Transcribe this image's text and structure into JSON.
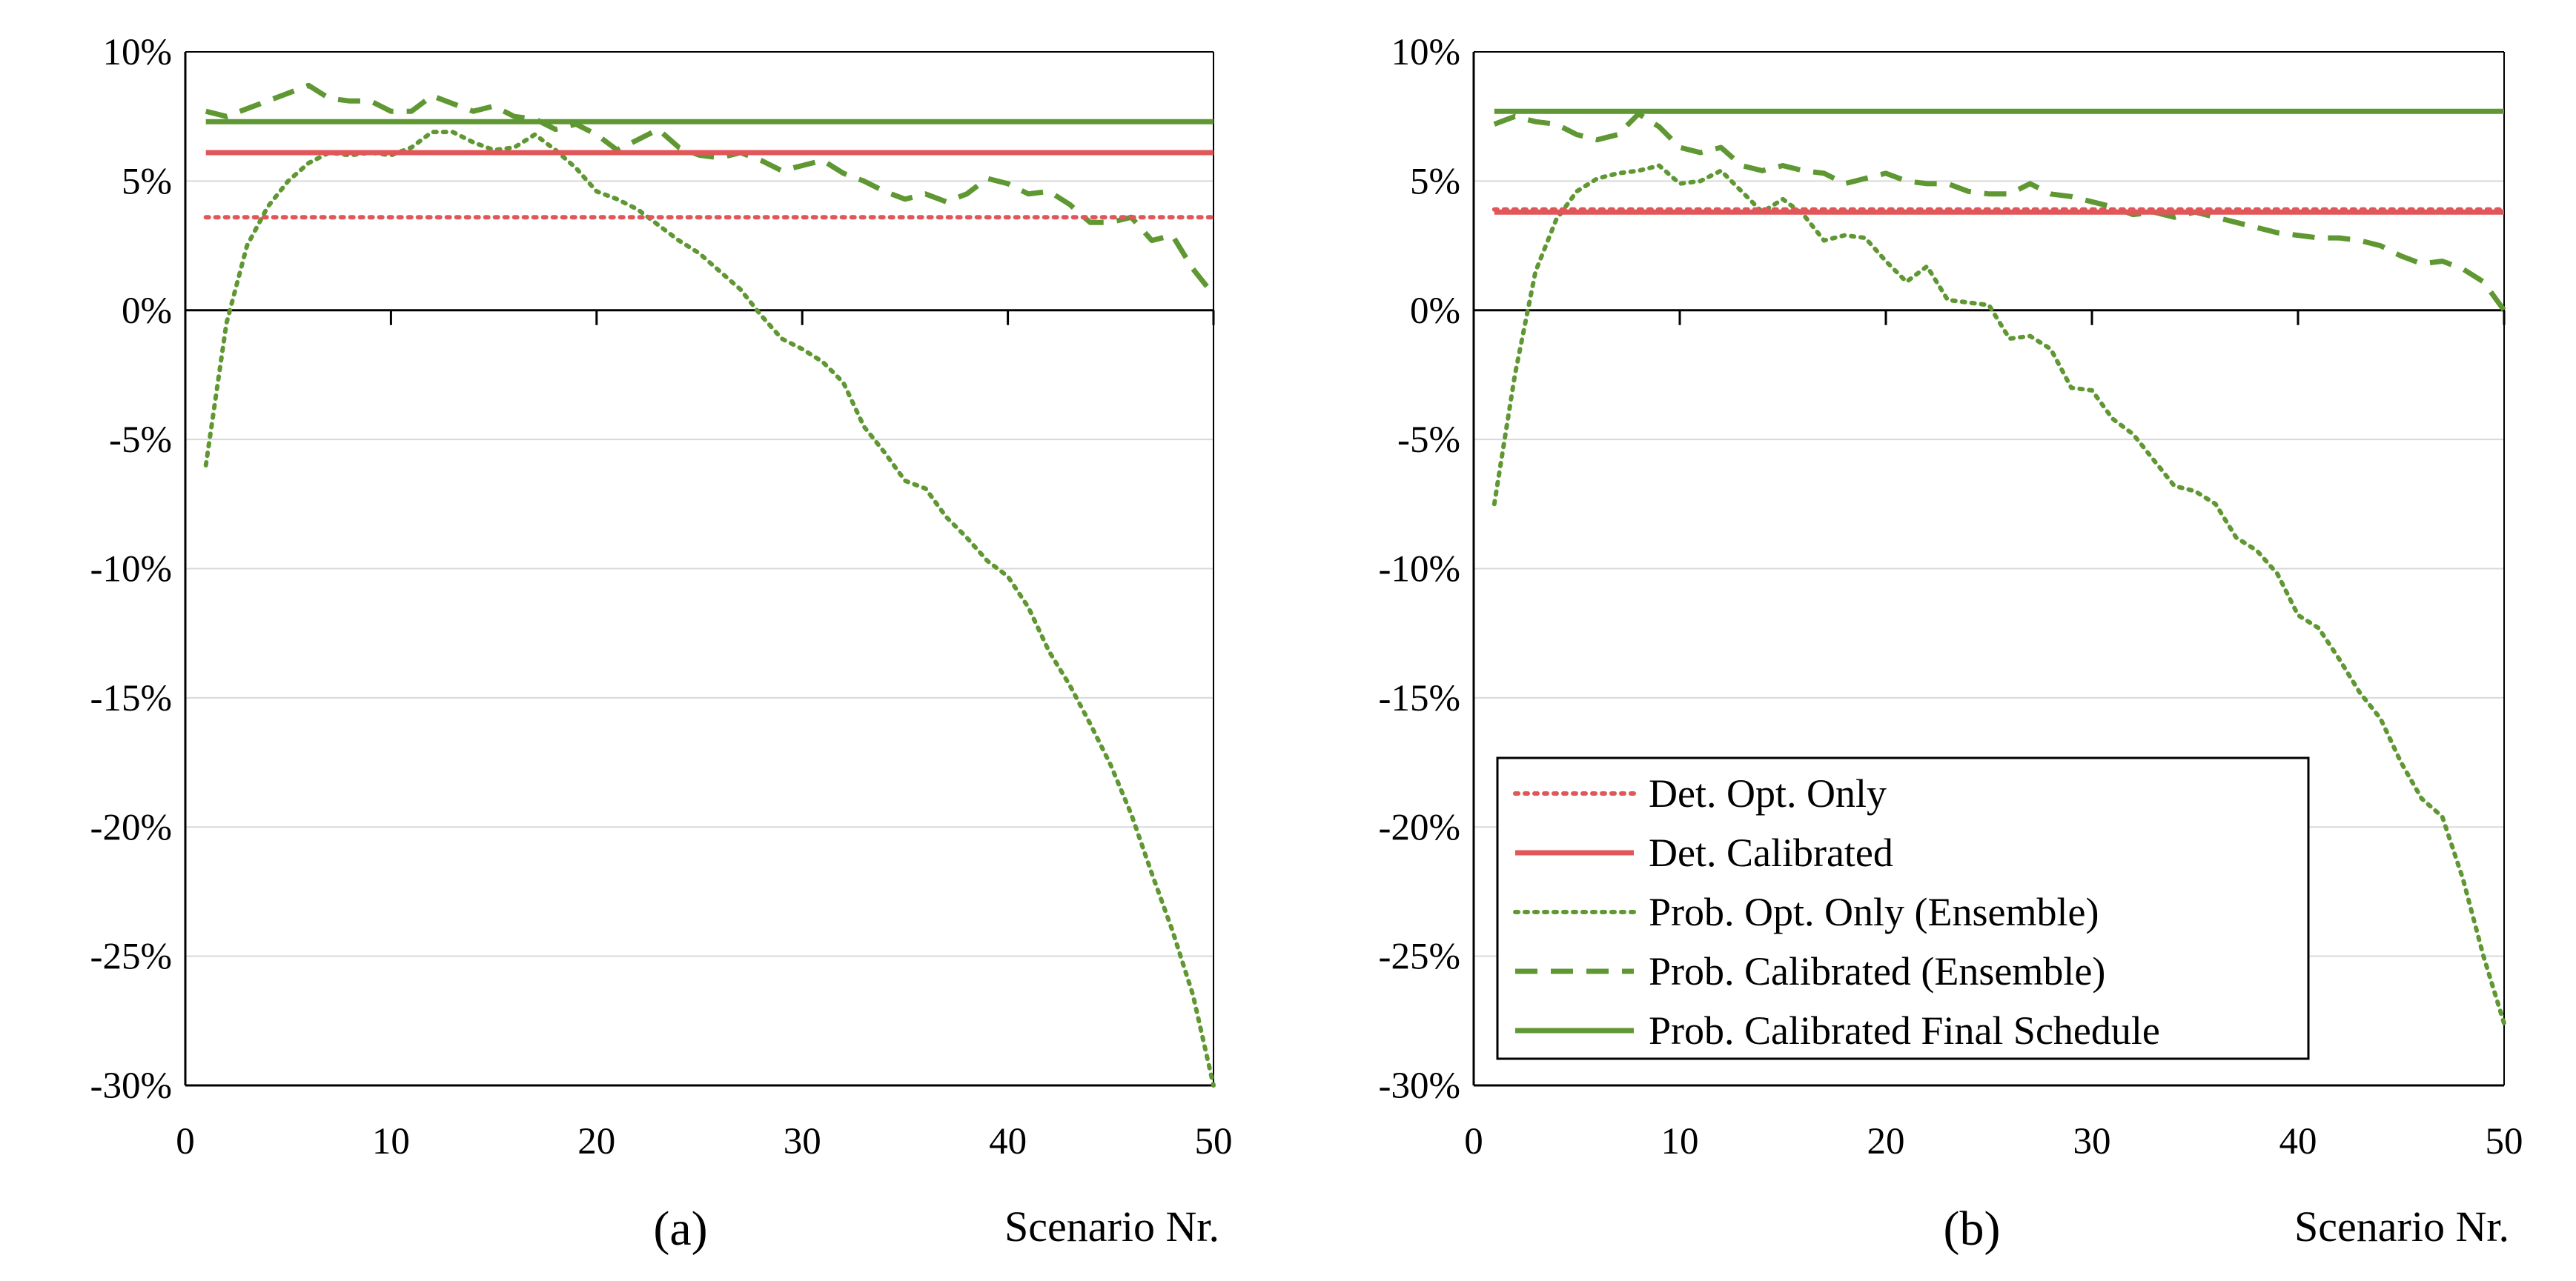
{
  "colors": {
    "red": "#e15759",
    "green": "#5f9732",
    "grid": "#d9d9d9",
    "axis": "#000000"
  },
  "chart_data": [
    {
      "type": "line",
      "panel_label": "(a)",
      "xlabel": "Scenario Nr.",
      "ylabel": "",
      "xlim": [
        0,
        50
      ],
      "ylim": [
        -30,
        10
      ],
      "xticks": [
        "0",
        "10",
        "20",
        "30",
        "40",
        "50"
      ],
      "yticks": [
        "10%",
        "5%",
        "0%",
        "-5%",
        "-10%",
        "-15%",
        "-20%",
        "-25%",
        "-30%"
      ],
      "series": [
        {
          "name": "Det. Opt. Only",
          "style": "red-dotted",
          "x": [
            1,
            50
          ],
          "values": [
            3.6,
            3.6
          ]
        },
        {
          "name": "Det. Calibrated",
          "style": "red-solid",
          "x": [
            1,
            50
          ],
          "values": [
            6.1,
            6.1
          ]
        },
        {
          "name": "Prob. Opt. Only (Ensemble)",
          "style": "green-dotted",
          "x": [
            1,
            2,
            3,
            4,
            5,
            6,
            7,
            8,
            9,
            10,
            11,
            12,
            13,
            14,
            15,
            16,
            17,
            18,
            19,
            20,
            21,
            22,
            23,
            24,
            25,
            26,
            27,
            28,
            29,
            30,
            31,
            32,
            33,
            34,
            35,
            36,
            37,
            38,
            39,
            40,
            41,
            42,
            43,
            44,
            45,
            46,
            47,
            48,
            49,
            50
          ],
          "values": [
            -6.0,
            -0.5,
            2.5,
            4.0,
            5.0,
            5.7,
            6.1,
            6.0,
            6.1,
            6.0,
            6.3,
            6.9,
            6.9,
            6.5,
            6.2,
            6.3,
            6.8,
            6.2,
            5.5,
            4.6,
            4.3,
            3.9,
            3.3,
            2.7,
            2.2,
            1.5,
            0.8,
            -0.2,
            -1.1,
            -1.5,
            -2.0,
            -2.8,
            -4.5,
            -5.5,
            -6.6,
            -6.9,
            -8.0,
            -8.8,
            -9.7,
            -10.3,
            -11.5,
            -13.2,
            -14.5,
            -16.0,
            -17.6,
            -19.5,
            -21.8,
            -24.0,
            -26.5,
            -30.0
          ]
        },
        {
          "name": "Prob. Calibrated (Ensemble)",
          "style": "green-dashed",
          "x": [
            1,
            2,
            3,
            4,
            5,
            6,
            7,
            8,
            9,
            10,
            11,
            12,
            13,
            14,
            15,
            16,
            17,
            18,
            19,
            20,
            21,
            22,
            23,
            24,
            25,
            26,
            27,
            28,
            29,
            30,
            31,
            32,
            33,
            34,
            35,
            36,
            37,
            38,
            39,
            40,
            41,
            42,
            43,
            44,
            45,
            46,
            47,
            48,
            49,
            50
          ],
          "values": [
            7.7,
            7.5,
            7.8,
            8.1,
            8.4,
            8.7,
            8.2,
            8.1,
            8.1,
            7.7,
            7.7,
            8.3,
            8.0,
            7.7,
            7.9,
            7.5,
            7.4,
            7.0,
            7.2,
            6.8,
            6.2,
            6.6,
            7.0,
            6.3,
            6.0,
            5.9,
            6.1,
            5.8,
            5.4,
            5.6,
            5.8,
            5.3,
            5.0,
            4.6,
            4.3,
            4.5,
            4.2,
            4.5,
            5.1,
            4.9,
            4.5,
            4.6,
            4.1,
            3.4,
            3.4,
            3.6,
            2.7,
            2.9,
            1.6,
            0.6
          ]
        },
        {
          "name": "Prob. Calibrated Final Schedule",
          "style": "green-solid",
          "x": [
            1,
            50
          ],
          "values": [
            7.3,
            7.3
          ]
        }
      ]
    },
    {
      "type": "line",
      "panel_label": "(b)",
      "xlabel": "Scenario Nr.",
      "ylabel": "",
      "xlim": [
        0,
        50
      ],
      "ylim": [
        -30,
        10
      ],
      "xticks": [
        "0",
        "10",
        "20",
        "30",
        "40",
        "50"
      ],
      "yticks": [
        "10%",
        "5%",
        "0%",
        "-5%",
        "-10%",
        "-15%",
        "-20%",
        "-25%",
        "-30%"
      ],
      "legend": {
        "position": "bottom-right",
        "entries": [
          "Det. Opt. Only",
          "Det. Calibrated",
          "Prob. Opt. Only (Ensemble)",
          "Prob. Calibrated (Ensemble)",
          "Prob. Calibrated Final Schedule"
        ]
      },
      "series": [
        {
          "name": "Det. Opt. Only",
          "style": "red-dotted",
          "x": [
            1,
            50
          ],
          "values": [
            3.9,
            3.9
          ]
        },
        {
          "name": "Det. Calibrated",
          "style": "red-solid",
          "x": [
            1,
            50
          ],
          "values": [
            3.8,
            3.8
          ]
        },
        {
          "name": "Prob. Opt. Only (Ensemble)",
          "style": "green-dotted",
          "x": [
            1,
            2,
            3,
            4,
            5,
            6,
            7,
            8,
            9,
            10,
            11,
            12,
            13,
            14,
            15,
            16,
            17,
            18,
            19,
            20,
            21,
            22,
            23,
            24,
            25,
            26,
            27,
            28,
            29,
            30,
            31,
            32,
            33,
            34,
            35,
            36,
            37,
            38,
            39,
            40,
            41,
            42,
            43,
            44,
            45,
            46,
            47,
            48,
            49,
            50
          ],
          "values": [
            -7.5,
            -2.5,
            1.5,
            3.5,
            4.6,
            5.1,
            5.3,
            5.4,
            5.6,
            4.9,
            5.0,
            5.4,
            4.6,
            3.8,
            4.3,
            3.7,
            2.7,
            2.9,
            2.8,
            1.9,
            1.1,
            1.7,
            0.4,
            0.3,
            0.2,
            -1.1,
            -1.0,
            -1.5,
            -3.0,
            -3.1,
            -4.2,
            -4.8,
            -5.8,
            -6.8,
            -7.0,
            -7.5,
            -8.8,
            -9.3,
            -10.2,
            -11.8,
            -12.3,
            -13.5,
            -14.8,
            -15.8,
            -17.5,
            -18.9,
            -19.6,
            -22.0,
            -25.0,
            -27.6
          ]
        },
        {
          "name": "Prob. Calibrated (Ensemble)",
          "style": "green-dashed",
          "x": [
            1,
            2,
            3,
            4,
            5,
            6,
            7,
            8,
            9,
            10,
            11,
            12,
            13,
            14,
            15,
            16,
            17,
            18,
            19,
            20,
            21,
            22,
            23,
            24,
            25,
            26,
            27,
            28,
            29,
            30,
            31,
            32,
            33,
            34,
            35,
            36,
            37,
            38,
            39,
            40,
            41,
            42,
            43,
            44,
            45,
            46,
            47,
            48,
            49,
            50
          ],
          "values": [
            7.2,
            7.5,
            7.3,
            7.2,
            6.8,
            6.6,
            6.8,
            7.6,
            7.1,
            6.3,
            6.1,
            6.3,
            5.6,
            5.4,
            5.6,
            5.4,
            5.3,
            4.9,
            5.1,
            5.3,
            5.0,
            4.9,
            4.9,
            4.6,
            4.5,
            4.5,
            4.9,
            4.5,
            4.4,
            4.2,
            4.0,
            3.7,
            3.8,
            3.6,
            3.8,
            3.6,
            3.4,
            3.2,
            3.0,
            2.9,
            2.8,
            2.8,
            2.7,
            2.5,
            2.1,
            1.8,
            1.9,
            1.6,
            1.1,
            0.0
          ]
        },
        {
          "name": "Prob. Calibrated Final Schedule",
          "style": "green-solid",
          "x": [
            1,
            50
          ],
          "values": [
            7.7,
            7.7
          ]
        }
      ]
    }
  ]
}
